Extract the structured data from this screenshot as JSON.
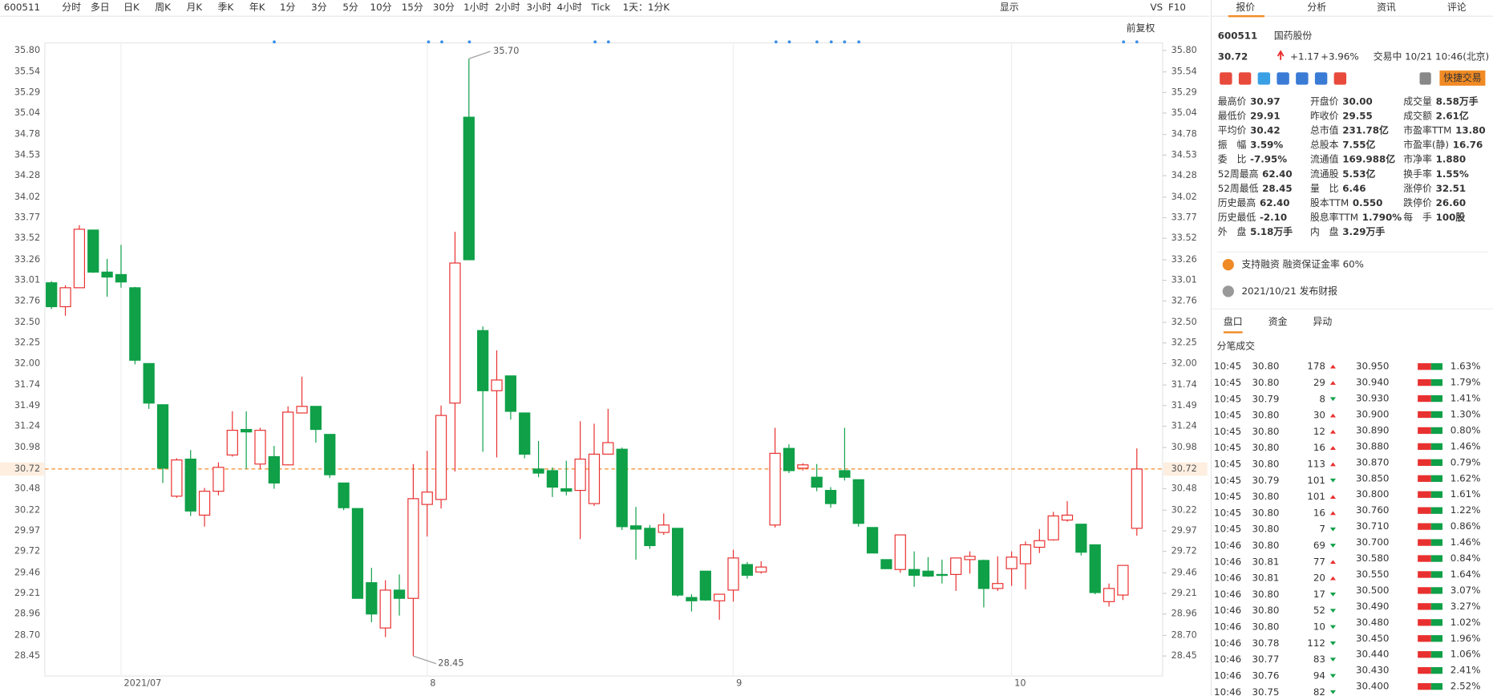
{
  "toolbar": {
    "code": "600511",
    "periods": [
      "分时",
      "多日",
      "日K",
      "周K",
      "月K",
      "季K",
      "年K",
      "1分",
      "3分",
      "5分",
      "10分",
      "15分",
      "30分",
      "1小时",
      "2小时",
      "3小时",
      "4小时",
      "Tick"
    ],
    "active": 2,
    "range": "1天：1分K",
    "display": "显示",
    "vs": "VS",
    "f10": "F10"
  },
  "chart_data": {
    "type": "candlestick",
    "adjust": "前复权",
    "up_color": "#e93030",
    "down_color": "#0fa048",
    "last_color": "#f28c28",
    "categories": [
      null,
      null,
      null,
      null,
      null,
      "2021/07",
      null,
      null,
      null,
      null,
      null,
      null,
      null,
      null,
      null,
      null,
      null,
      null,
      null,
      null,
      null,
      null,
      null,
      null,
      null,
      null,
      null,
      "8",
      null,
      null,
      null,
      null,
      null,
      null,
      null,
      null,
      null,
      null,
      null,
      null,
      null,
      null,
      null,
      null,
      null,
      null,
      null,
      null,
      null,
      "9",
      null,
      null,
      null,
      null,
      null,
      null,
      null,
      null,
      null,
      null,
      null,
      null,
      null,
      null,
      null,
      null,
      null,
      null,
      null,
      "10",
      null,
      null,
      null,
      null,
      null,
      null,
      null,
      null,
      null
    ],
    "open": [
      32.98,
      32.69,
      32.92,
      33.62,
      33.11,
      33.08,
      32.92,
      32.0,
      31.5,
      30.39,
      30.84,
      30.16,
      30.45,
      30.89,
      31.2,
      30.78,
      30.87,
      30.77,
      31.4,
      31.48,
      31.14,
      30.55,
      30.24,
      29.34,
      28.79,
      29.25,
      29.15,
      30.29,
      30.35,
      31.52,
      34.99,
      32.4,
      31.67,
      31.85,
      31.4,
      30.72,
      30.7,
      30.48,
      30.46,
      30.3,
      30.9,
      30.96,
      30.03,
      30.0,
      29.95,
      30.0,
      29.16,
      29.48,
      29.12,
      29.25,
      29.56,
      29.47,
      30.04,
      30.97,
      30.73,
      30.62,
      30.46,
      30.7,
      30.59,
      30.01,
      29.62,
      29.5,
      29.5,
      29.48,
      29.44,
      29.44,
      29.62,
      29.61,
      29.27,
      29.51,
      29.57,
      29.77,
      29.86,
      30.1,
      30.05,
      29.8,
      29.11,
      29.19,
      30.0
    ],
    "high": [
      33.0,
      32.95,
      33.68,
      33.62,
      33.27,
      33.44,
      32.93,
      32.0,
      31.5,
      30.85,
      30.95,
      30.49,
      30.8,
      31.42,
      31.42,
      31.22,
      31.0,
      31.48,
      31.84,
      31.48,
      31.14,
      30.55,
      30.24,
      29.52,
      29.37,
      29.44,
      30.78,
      30.94,
      31.49,
      33.6,
      35.7,
      32.45,
      32.16,
      31.85,
      31.4,
      31.06,
      30.74,
      30.82,
      31.3,
      31.27,
      31.45,
      30.98,
      30.26,
      30.04,
      30.18,
      30.0,
      29.2,
      29.48,
      29.2,
      29.74,
      29.59,
      29.6,
      31.22,
      31.02,
      30.79,
      30.78,
      30.5,
      31.22,
      30.59,
      30.01,
      29.62,
      29.92,
      29.72,
      29.65,
      29.62,
      29.64,
      29.72,
      29.62,
      29.66,
      29.72,
      29.84,
      29.99,
      30.2,
      30.33,
      30.05,
      29.8,
      29.33,
      29.55,
      30.97
    ],
    "low": [
      32.66,
      32.58,
      32.92,
      33.1,
      32.81,
      32.92,
      31.99,
      31.45,
      30.55,
      30.37,
      30.15,
      30.02,
      30.4,
      30.87,
      30.72,
      30.72,
      30.48,
      30.77,
      31.4,
      31.04,
      30.61,
      30.22,
      29.15,
      28.86,
      28.68,
      28.94,
      28.45,
      29.9,
      30.24,
      30.69,
      33.26,
      30.93,
      30.86,
      31.32,
      30.85,
      30.62,
      30.38,
      30.4,
      29.87,
      30.27,
      30.9,
      29.98,
      29.62,
      29.75,
      29.92,
      29.17,
      28.99,
      29.12,
      28.89,
      29.11,
      29.39,
      29.45,
      30.01,
      30.67,
      30.7,
      30.45,
      30.25,
      30.58,
      30.02,
      29.7,
      29.51,
      29.46,
      29.29,
      29.41,
      29.33,
      29.24,
      29.45,
      29.04,
      29.24,
      29.3,
      29.26,
      29.7,
      29.85,
      30.08,
      29.67,
      29.2,
      29.05,
      29.13,
      29.91
    ],
    "close": [
      32.69,
      32.92,
      33.63,
      33.11,
      33.05,
      32.99,
      32.04,
      31.52,
      30.73,
      30.83,
      30.21,
      30.45,
      30.74,
      31.19,
      31.17,
      31.19,
      30.55,
      31.41,
      31.48,
      31.2,
      30.65,
      30.25,
      29.15,
      28.96,
      29.25,
      29.15,
      30.36,
      30.44,
      31.37,
      33.22,
      33.26,
      31.67,
      31.8,
      31.42,
      30.9,
      30.67,
      30.5,
      30.45,
      30.84,
      30.9,
      31.04,
      30.02,
      29.99,
      29.79,
      30.04,
      29.19,
      29.12,
      29.13,
      29.2,
      29.64,
      29.43,
      29.53,
      30.91,
      30.7,
      30.77,
      30.5,
      30.3,
      30.62,
      30.06,
      29.7,
      29.51,
      29.92,
      29.43,
      29.42,
      29.43,
      29.64,
      29.66,
      29.27,
      29.33,
      29.65,
      29.8,
      29.85,
      30.15,
      30.16,
      29.71,
      29.22,
      29.27,
      29.55,
      30.72
    ],
    "ylim": [
      28.45,
      35.8
    ],
    "yticks": [
      {
        "value": 35.8,
        "label": "35.80"
      },
      35.54,
      35.29,
      35.04,
      34.78,
      34.53,
      34.28,
      34.02,
      33.77,
      33.52,
      33.26,
      33.01,
      32.76,
      {
        "value": 32.5,
        "label": "32.50"
      },
      32.25,
      {
        "value": 32.0,
        "label": "32.00"
      },
      31.74,
      31.49,
      31.24,
      30.98,
      30.48,
      30.22,
      29.97,
      29.72,
      29.46,
      29.21,
      28.96,
      {
        "value": 28.7,
        "label": "28.70"
      },
      28.45
    ],
    "last": 30.72,
    "annotations": [
      {
        "value": 35.7,
        "label": "35.70"
      },
      {
        "value": 28.45,
        "label": "28.45"
      }
    ]
  },
  "panel": {
    "tabs": [
      "报价",
      "分析",
      "资讯",
      "评论"
    ],
    "code": "600511",
    "name": "国药股份",
    "price": "30.72",
    "change": "+1.17",
    "pct": "+3.96%",
    "status": "交易中 10/21 10:46(北京)",
    "trade": "快捷交易",
    "stats": [
      [
        {
          "label": "最高价",
          "value": "30.97",
          "color": "#e93030"
        },
        {
          "label": "最低价",
          "value": "29.91",
          "color": "#e93030"
        },
        {
          "label": "平均价",
          "value": "30.42",
          "color": "#e93030"
        },
        {
          "label": "振　幅",
          "value": "3.59%"
        },
        {
          "label": "委　比",
          "value": "-7.95%"
        },
        {
          "label": "52周最高",
          "value": "62.40",
          "color": "#e93030"
        },
        {
          "label": "52周最低",
          "value": "28.45",
          "color": "#0fa048"
        },
        {
          "label": "历史最高",
          "value": "62.40",
          "color": "#e93030"
        },
        {
          "label": "历史最低",
          "value": "-2.10",
          "color": "#0fa048"
        },
        {
          "label": "外　盘",
          "value": "5.18万手",
          "color": "#e93030"
        }
      ],
      [
        {
          "label": "开盘价",
          "value": "30.00",
          "color": "#e93030"
        },
        {
          "label": "昨收价",
          "value": "29.55"
        },
        {
          "label": "总市值",
          "value": "231.78亿"
        },
        {
          "label": "总股本",
          "value": "7.55亿"
        },
        {
          "label": "流通值",
          "value": "169.988亿"
        },
        {
          "label": "流通股",
          "value": "5.53亿"
        },
        {
          "label": "量　比",
          "value": "6.46"
        },
        {
          "label": "股本TTM",
          "value": "0.550"
        },
        {
          "label": "股息率TTM",
          "value": "1.790%"
        },
        {
          "label": "内　盘",
          "value": "3.29万手",
          "color": "#0fa048"
        }
      ],
      [
        {
          "label": "成交量",
          "value": "8.58万手"
        },
        {
          "label": "成交额",
          "value": "2.61亿"
        },
        {
          "label": "市盈率TTM",
          "value": "13.80"
        },
        {
          "label": "市盈率(静)",
          "value": "16.76"
        },
        {
          "label": "市净率",
          "value": "1.880"
        },
        {
          "label": "换手率",
          "value": "1.55%"
        },
        {
          "label": "涨停价",
          "value": "32.51",
          "color": "#e93030"
        },
        {
          "label": "跌停价",
          "value": "26.60",
          "color": "#0fa048"
        },
        {
          "label": "每　手",
          "value": "100股"
        }
      ]
    ],
    "notices": [
      "支持融资 融资保证金率 60%",
      "2021/10/21 发布财报"
    ],
    "subtabs": [
      "盘口",
      "资金",
      "异动"
    ],
    "ticks_title": "分笔成交",
    "trades": [
      [
        "10:45",
        "30.80",
        "178",
        "up"
      ],
      [
        "10:45",
        "30.80",
        "29",
        "up"
      ],
      [
        "10:45",
        "30.79",
        "8",
        "down"
      ],
      [
        "10:45",
        "30.80",
        "30",
        "up"
      ],
      [
        "10:45",
        "30.80",
        "12",
        "up"
      ],
      [
        "10:45",
        "30.80",
        "16",
        "up"
      ],
      [
        "10:45",
        "30.80",
        "113",
        "up"
      ],
      [
        "10:45",
        "30.79",
        "101",
        "down"
      ],
      [
        "10:45",
        "30.80",
        "101",
        "up"
      ],
      [
        "10:45",
        "30.80",
        "16",
        "up"
      ],
      [
        "10:45",
        "30.80",
        "7",
        "down"
      ],
      [
        "10:46",
        "30.80",
        "69",
        "down"
      ],
      [
        "10:46",
        "30.81",
        "77",
        "up"
      ],
      [
        "10:46",
        "30.81",
        "20",
        "up"
      ],
      [
        "10:46",
        "30.80",
        "17",
        "down"
      ],
      [
        "10:46",
        "30.80",
        "52",
        "down"
      ],
      [
        "10:46",
        "30.80",
        "10",
        "down"
      ],
      [
        "10:46",
        "30.78",
        "112",
        "down"
      ],
      [
        "10:46",
        "30.77",
        "83",
        "down"
      ],
      [
        "10:46",
        "30.76",
        "94",
        "down"
      ],
      [
        "10:46",
        "30.75",
        "82",
        "down"
      ]
    ],
    "book": [
      [
        "30.950",
        "1.63%"
      ],
      [
        "30.940",
        "1.79%"
      ],
      [
        "30.930",
        "1.41%"
      ],
      [
        "30.900",
        "1.30%"
      ],
      [
        "30.890",
        "0.80%"
      ],
      [
        "30.880",
        "1.46%"
      ],
      [
        "30.870",
        "0.79%"
      ],
      [
        "30.850",
        "1.62%"
      ],
      [
        "30.800",
        "1.61%"
      ],
      [
        "30.760",
        "1.22%"
      ],
      [
        "30.710",
        "0.86%"
      ],
      [
        "30.700",
        "1.46%"
      ],
      [
        "30.580",
        "0.84%"
      ],
      [
        "30.550",
        "1.64%"
      ],
      [
        "30.500",
        "3.07%"
      ],
      [
        "30.490",
        "3.27%"
      ],
      [
        "30.480",
        "1.02%"
      ],
      [
        "30.450",
        "1.96%"
      ],
      [
        "30.440",
        "1.06%"
      ],
      [
        "30.430",
        "2.41%"
      ],
      [
        "30.400",
        "2.52%"
      ]
    ]
  }
}
